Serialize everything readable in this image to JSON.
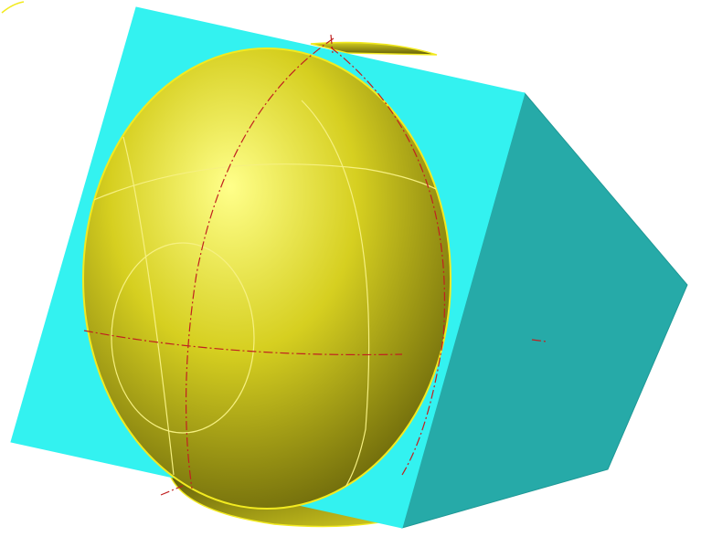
{
  "scene": {
    "objects": [
      {
        "id": "cube",
        "kind": "box"
      },
      {
        "id": "sphere",
        "kind": "sphere"
      }
    ],
    "colors": {
      "background": "#ffffff",
      "cube_front_face": "#33f2f0",
      "cube_side_face": "#26aaa8",
      "cube_edge": "#1f9896",
      "sphere_highlight": "#ffff8a",
      "sphere_mid": "#d6cf20",
      "sphere_shadow": "#5e5a08",
      "sphere_outline": "#f2ea20",
      "iso_curve": "#f6f080",
      "seam_curve": "#c02020"
    }
  }
}
